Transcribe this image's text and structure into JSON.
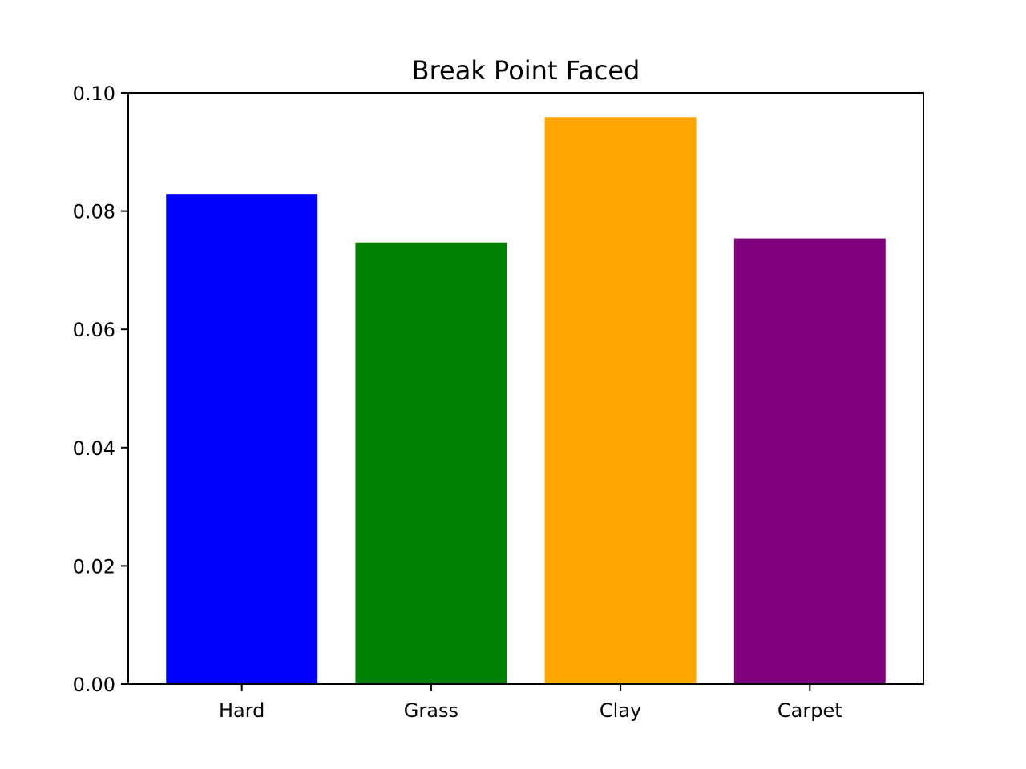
{
  "chart_data": {
    "type": "bar",
    "title": "Break Point Faced",
    "xlabel": "",
    "ylabel": "",
    "categories": [
      "Hard",
      "Grass",
      "Clay",
      "Carpet"
    ],
    "values": [
      0.0829,
      0.0747,
      0.0959,
      0.0754
    ],
    "colors": [
      "#0000ff",
      "#008000",
      "#ffa500",
      "#800080"
    ],
    "ylim": [
      0,
      0.1
    ],
    "yticks": [
      0.0,
      0.02,
      0.04,
      0.06,
      0.08,
      0.1
    ],
    "ytick_labels": [
      "0.00",
      "0.02",
      "0.04",
      "0.06",
      "0.08",
      "0.10"
    ],
    "grid": false,
    "legend": "none"
  }
}
